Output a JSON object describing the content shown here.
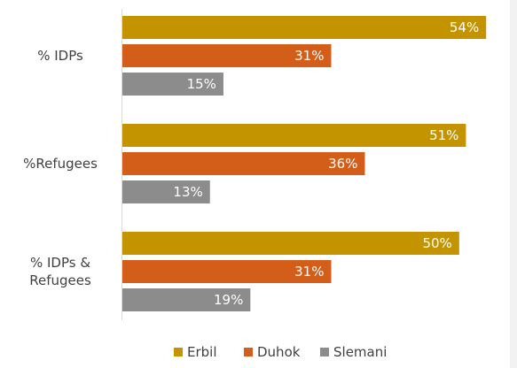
{
  "chart_data": {
    "type": "bar",
    "orientation": "horizontal",
    "categories": [
      [
        "% IDPs"
      ],
      [
        "%Refugees"
      ],
      [
        "% IDPs &",
        "Refugees"
      ]
    ],
    "series": [
      {
        "name": "Erbil",
        "color": "#c49400",
        "values": [
          54,
          51,
          50
        ],
        "labels": [
          "54%",
          "51%",
          "50%"
        ]
      },
      {
        "name": "Duhok",
        "color": "#d35e19",
        "values": [
          31,
          36,
          31
        ],
        "labels": [
          "31%",
          "36%",
          "31%"
        ]
      },
      {
        "name": "Slemani",
        "color": "#8c8c8c",
        "values": [
          15,
          13,
          19
        ],
        "labels": [
          "15%",
          "13%",
          "19%"
        ]
      }
    ],
    "xlim": [
      0,
      57
    ],
    "grid": false,
    "legend_position": "bottom"
  }
}
